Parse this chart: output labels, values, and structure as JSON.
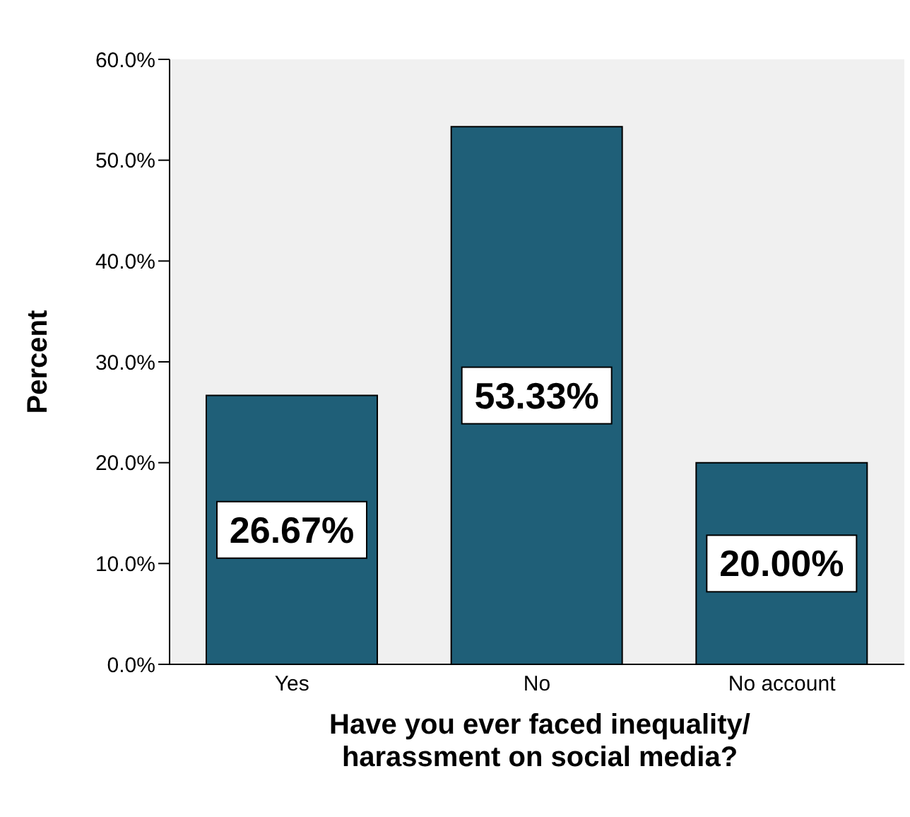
{
  "chart_data": {
    "type": "bar",
    "xlabel": "Have you ever faced inequality/ harassment on social media?",
    "ylabel": "Percent",
    "categories": [
      "Yes",
      "No",
      "No account"
    ],
    "values": [
      26.67,
      53.33,
      20.0
    ],
    "color": "#1f5f78",
    "value_labels": [
      "26.67%",
      "53.33%",
      "20.00%"
    ],
    "ylim": [
      0,
      60
    ],
    "yticks": [
      {
        "value": 0,
        "label": "0.0%"
      },
      {
        "value": 10,
        "label": "10.0%"
      },
      {
        "value": 20,
        "label": "20.0%"
      },
      {
        "value": 30,
        "label": "30.0%"
      },
      {
        "value": 40,
        "label": "40.0%"
      },
      {
        "value": 50,
        "label": "50.0%"
      },
      {
        "value": 60,
        "label": "60.0%"
      }
    ],
    "grid": false,
    "legend": false
  }
}
